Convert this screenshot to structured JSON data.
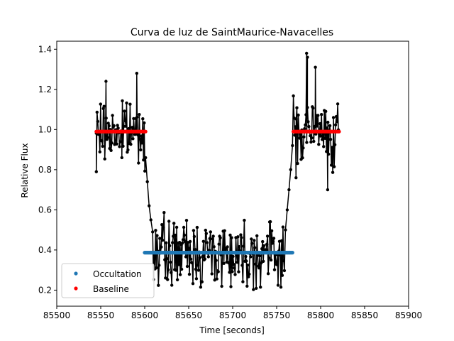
{
  "chart_data": {
    "type": "scatter",
    "title": "Curva de luz de SaintMaurice-Navacelles",
    "xlabel": "Time [seconds]",
    "ylabel": "Relative Flux",
    "xlim": [
      85500,
      85900
    ],
    "ylim": [
      0.12,
      1.44
    ],
    "xticks": [
      85500,
      85550,
      85600,
      85650,
      85700,
      85750,
      85800,
      85850,
      85900
    ],
    "yticks": [
      0.2,
      0.4,
      0.6,
      0.8,
      1.0,
      1.2,
      1.4
    ],
    "ytick_labels": [
      "0.2",
      "0.4",
      "0.6",
      "0.8",
      "1.0",
      "1.2",
      "1.4"
    ],
    "grid": false,
    "legend_position": "lower-left",
    "series": [
      {
        "name": "Occultation",
        "color": "#1f77b4",
        "style": "points",
        "x_range": [
          85600,
          85768
        ],
        "constant_y": 0.387
      },
      {
        "name": "Baseline",
        "color": "#ff0000",
        "style": "points",
        "segments": [
          {
            "x_range": [
              85545,
              85601
            ],
            "constant_y": 0.99
          },
          {
            "x_range": [
              85769,
              85821
            ],
            "constant_y": 0.99
          }
        ]
      },
      {
        "color": "#000000",
        "style": "line-and-points",
        "segments": [
          {
            "x_range": [
              85545,
              85601
            ],
            "mean_y": 0.99,
            "scatter": 0.07
          },
          {
            "x": [
              85601,
              85603,
              85605,
              85607,
              85609
            ],
            "y": [
              0.86,
              0.74,
              0.62,
              0.55,
              0.49
            ]
          },
          {
            "x_range": [
              85610,
              85759
            ],
            "mean_y": 0.385,
            "scatter": 0.08
          },
          {
            "x": [
              85760,
              85762,
              85764,
              85766,
              85768
            ],
            "y": [
              0.5,
              0.6,
              0.7,
              0.8,
              0.92
            ]
          },
          {
            "x_range": [
              85769,
              85821
            ],
            "mean_y": 0.99,
            "scatter": 0.08
          }
        ],
        "notable_points": {
          "x": [
            85545,
            85556,
            85574,
            85591,
            85772,
            85784,
            85785,
            85794,
            85808
          ],
          "y": [
            0.79,
            1.24,
            0.86,
            1.28,
            0.76,
            1.38,
            1.36,
            1.31,
            0.7
          ]
        }
      }
    ]
  }
}
